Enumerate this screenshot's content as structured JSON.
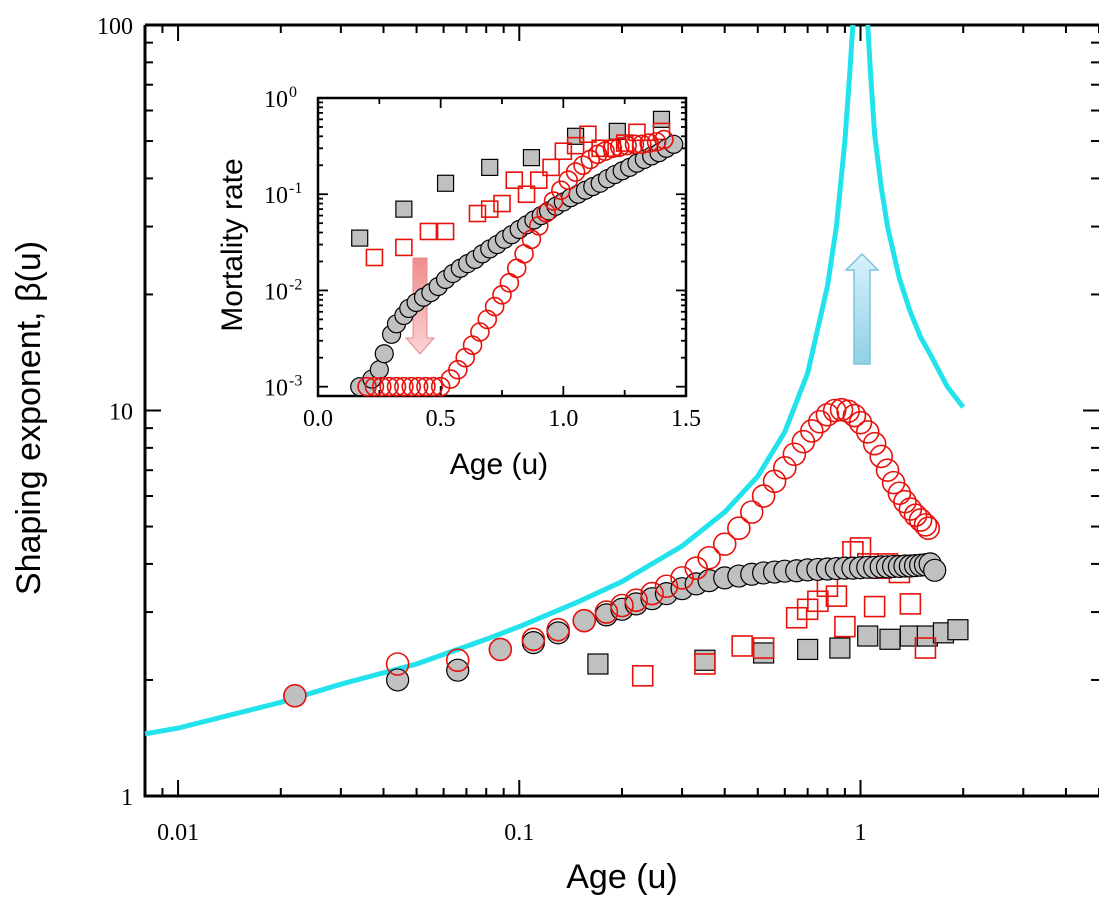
{
  "main_chart": {
    "xlabel": "Age (u)",
    "ylabel": "Shaping exponent, β(u)",
    "x_scale": "log",
    "y_scale": "log",
    "xlim": [
      0.008,
      5
    ],
    "ylim": [
      1,
      100
    ],
    "x_tick_labels": [
      "0.01",
      "0.1",
      "1"
    ],
    "x_tick_values": [
      0.01,
      0.1,
      1
    ],
    "y_tick_labels": [
      "1",
      "10",
      "100"
    ],
    "y_tick_values": [
      1,
      10,
      100
    ],
    "arrow_color": "#a8dcec"
  },
  "inset_chart": {
    "xlabel": "Age (u)",
    "ylabel": "Mortality rate",
    "x_scale": "linear",
    "y_scale": "log",
    "xlim": [
      0.0,
      1.5
    ],
    "ylim": [
      0.0008,
      1.0
    ],
    "x_tick_labels": [
      "0.0",
      "0.5",
      "1.0",
      "1.5"
    ],
    "x_tick_values": [
      0.0,
      0.5,
      1.0,
      1.5
    ],
    "y_tick_labels": [
      {
        "base": "10",
        "exp": "0"
      },
      {
        "base": "10",
        "exp": "-1"
      },
      {
        "base": "10",
        "exp": "-2"
      },
      {
        "base": "10",
        "exp": "-3"
      }
    ],
    "y_tick_values": [
      1,
      0.1,
      0.01,
      0.001
    ],
    "arrow_color": "#f2a8a8"
  },
  "colors": {
    "cyan_curve": "#22e3eb",
    "red": "#e8120c",
    "gray_fill": "#c0c0c0",
    "black": "#000000"
  },
  "chart_data": [
    {
      "type": "scatter",
      "x_scale": "log",
      "y_scale": "log",
      "xlim": [
        0.008,
        5
      ],
      "ylim": [
        1,
        100
      ],
      "series": [
        {
          "marker": "line",
          "color": "#22e3eb",
          "x": [
            0.008,
            0.01,
            0.02,
            0.03,
            0.05,
            0.08,
            0.1,
            0.15,
            0.2,
            0.3,
            0.4,
            0.5,
            0.6,
            0.7,
            0.8,
            0.85,
            0.9,
            0.93,
            0.95
          ],
          "y": [
            1.45,
            1.5,
            1.75,
            1.95,
            2.2,
            2.55,
            2.75,
            3.2,
            3.6,
            4.45,
            5.45,
            6.75,
            8.8,
            12.5,
            21,
            30,
            50,
            75,
            100
          ]
        },
        {
          "marker": "line",
          "color": "#22e3eb",
          "x": [
            1.05,
            1.07,
            1.1,
            1.15,
            1.2,
            1.3,
            1.4,
            1.5,
            1.6,
            1.8,
            2.0
          ],
          "y": [
            100,
            75,
            52,
            38,
            30,
            22,
            18,
            15.5,
            14,
            11.5,
            10.2
          ]
        },
        {
          "marker": "open-circle",
          "color": "#e8120c",
          "x": [
            0.022,
            0.044,
            0.066,
            0.088,
            0.11,
            0.13,
            0.155,
            0.18,
            0.2,
            0.22,
            0.245,
            0.27,
            0.3,
            0.33,
            0.36,
            0.4,
            0.44,
            0.48,
            0.52,
            0.56,
            0.6,
            0.64,
            0.68,
            0.72,
            0.76,
            0.8,
            0.84,
            0.88,
            0.92,
            0.96,
            1.0,
            1.05,
            1.1,
            1.15,
            1.2,
            1.25,
            1.3,
            1.35,
            1.4,
            1.45,
            1.5,
            1.55,
            1.58
          ],
          "y": [
            1.82,
            2.2,
            2.25,
            2.4,
            2.55,
            2.7,
            2.85,
            3.0,
            3.12,
            3.22,
            3.35,
            3.5,
            3.68,
            3.9,
            4.15,
            4.5,
            4.95,
            5.45,
            6.0,
            6.55,
            7.1,
            7.7,
            8.3,
            8.85,
            9.35,
            9.75,
            10.0,
            10.05,
            9.95,
            9.7,
            9.3,
            8.8,
            8.2,
            7.6,
            7.0,
            6.5,
            6.1,
            5.8,
            5.55,
            5.35,
            5.2,
            5.05,
            4.95
          ]
        },
        {
          "marker": "filled-circle",
          "color": "#c0c0c0",
          "x": [
            0.022,
            0.044,
            0.066,
            0.088,
            0.11,
            0.13,
            0.155,
            0.18,
            0.2,
            0.22,
            0.245,
            0.27,
            0.3,
            0.33,
            0.36,
            0.4,
            0.44,
            0.48,
            0.52,
            0.56,
            0.6,
            0.65,
            0.7,
            0.75,
            0.8,
            0.85,
            0.9,
            0.95,
            1.0,
            1.05,
            1.1,
            1.15,
            1.2,
            1.25,
            1.3,
            1.35,
            1.4,
            1.45,
            1.5,
            1.55,
            1.6,
            1.65
          ],
          "y": [
            1.82,
            2.0,
            2.12,
            2.4,
            2.5,
            2.65,
            2.85,
            2.95,
            3.05,
            3.15,
            3.25,
            3.35,
            3.45,
            3.55,
            3.62,
            3.68,
            3.72,
            3.76,
            3.79,
            3.81,
            3.83,
            3.84,
            3.86,
            3.87,
            3.88,
            3.89,
            3.9,
            3.9,
            3.91,
            3.92,
            3.92,
            3.93,
            3.93,
            3.94,
            3.94,
            3.95,
            3.95,
            3.96,
            3.97,
            3.98,
            4.0,
            3.85
          ]
        },
        {
          "marker": "open-square",
          "color": "#e8120c",
          "x": [
            0.23,
            0.35,
            0.45,
            0.52,
            0.65,
            0.7,
            0.75,
            0.8,
            0.85,
            0.9,
            0.95,
            1.0,
            1.05,
            1.1,
            1.15,
            1.2,
            1.3,
            1.4,
            1.55
          ],
          "y": [
            2.05,
            2.2,
            2.45,
            2.42,
            2.9,
            3.05,
            3.2,
            3.5,
            3.3,
            2.75,
            4.3,
            4.4,
            4.0,
            3.1,
            3.9,
            4.0,
            3.8,
            3.15,
            2.42
          ]
        },
        {
          "marker": "filled-square",
          "color": "#c0c0c0",
          "x": [
            0.17,
            0.35,
            0.52,
            0.7,
            0.87,
            1.05,
            1.22,
            1.4,
            1.57,
            1.75,
            1.93
          ],
          "y": [
            2.2,
            2.25,
            2.35,
            2.4,
            2.42,
            2.6,
            2.55,
            2.6,
            2.6,
            2.65,
            2.7
          ]
        }
      ]
    },
    {
      "type": "scatter",
      "x_scale": "linear",
      "y_scale": "log",
      "xlim": [
        0.0,
        1.5
      ],
      "ylim": [
        0.0008,
        1.0
      ],
      "series": [
        {
          "marker": "filled-square",
          "color": "#c0c0c0",
          "x": [
            0.17,
            0.35,
            0.52,
            0.7,
            0.87,
            1.05,
            1.22,
            1.4
          ],
          "y": [
            0.035,
            0.07,
            0.13,
            0.19,
            0.24,
            0.4,
            0.45,
            0.6
          ]
        },
        {
          "marker": "open-square",
          "color": "#e8120c",
          "x": [
            0.23,
            0.35,
            0.45,
            0.52,
            0.65,
            0.7,
            0.75,
            0.8,
            0.85,
            0.9,
            0.95,
            1.0,
            1.05,
            1.1,
            1.15,
            1.2,
            1.25,
            1.3,
            1.35,
            1.4
          ],
          "y": [
            0.022,
            0.028,
            0.041,
            0.041,
            0.063,
            0.07,
            0.08,
            0.14,
            0.1,
            0.14,
            0.19,
            0.28,
            0.32,
            0.42,
            0.3,
            0.3,
            0.34,
            0.44,
            0.3,
            0.45
          ]
        },
        {
          "marker": "filled-circle",
          "color": "#c0c0c0",
          "x": [
            0.17,
            0.2,
            0.22,
            0.25,
            0.27,
            0.3,
            0.32,
            0.35,
            0.37,
            0.4,
            0.43,
            0.46,
            0.49,
            0.52,
            0.55,
            0.58,
            0.61,
            0.64,
            0.67,
            0.7,
            0.73,
            0.76,
            0.79,
            0.82,
            0.85,
            0.88,
            0.91,
            0.94,
            0.97,
            1.0,
            1.03,
            1.06,
            1.09,
            1.12,
            1.15,
            1.18,
            1.21,
            1.24,
            1.27,
            1.3,
            1.33,
            1.36,
            1.39,
            1.42,
            1.45
          ],
          "y": [
            0.001,
            0.001,
            0.0012,
            0.0015,
            0.0022,
            0.0035,
            0.0045,
            0.0055,
            0.0065,
            0.0075,
            0.0085,
            0.0095,
            0.011,
            0.013,
            0.015,
            0.017,
            0.019,
            0.021,
            0.024,
            0.027,
            0.03,
            0.034,
            0.038,
            0.043,
            0.048,
            0.054,
            0.06,
            0.067,
            0.075,
            0.083,
            0.092,
            0.1,
            0.11,
            0.12,
            0.13,
            0.145,
            0.16,
            0.175,
            0.19,
            0.21,
            0.23,
            0.25,
            0.27,
            0.3,
            0.33
          ]
        },
        {
          "marker": "open-circle",
          "color": "#e8120c",
          "x": [
            0.2,
            0.23,
            0.26,
            0.29,
            0.32,
            0.35,
            0.38,
            0.41,
            0.44,
            0.47,
            0.5,
            0.54,
            0.57,
            0.6,
            0.63,
            0.66,
            0.69,
            0.72,
            0.75,
            0.78,
            0.81,
            0.84,
            0.87,
            0.9,
            0.93,
            0.96,
            0.99,
            1.02,
            1.05,
            1.08,
            1.11,
            1.14,
            1.17,
            1.2,
            1.23,
            1.26,
            1.29,
            1.32,
            1.35,
            1.38,
            1.41
          ],
          "y": [
            0.001,
            0.001,
            0.001,
            0.001,
            0.001,
            0.001,
            0.001,
            0.001,
            0.001,
            0.001,
            0.001,
            0.0012,
            0.0015,
            0.002,
            0.0027,
            0.0037,
            0.005,
            0.0068,
            0.009,
            0.012,
            0.017,
            0.024,
            0.034,
            0.047,
            0.064,
            0.085,
            0.11,
            0.14,
            0.17,
            0.2,
            0.23,
            0.26,
            0.28,
            0.3,
            0.31,
            0.32,
            0.33,
            0.33,
            0.34,
            0.35,
            0.37
          ]
        }
      ]
    }
  ]
}
